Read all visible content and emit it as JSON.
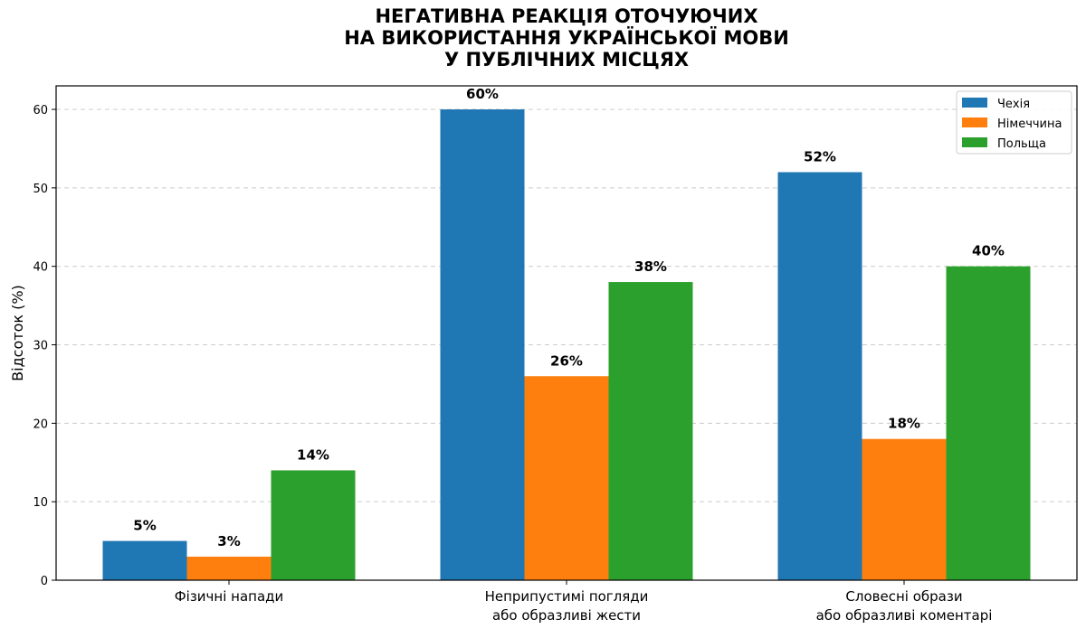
{
  "chart_data": {
    "type": "bar",
    "title": [
      "НЕГАТИВНА РЕАКЦІЯ ОТОЧУЮЧИХ",
      "НА ВИКОРИСТАННЯ УКРАЇНСЬКОЇ МОВИ",
      "У ПУБЛІЧНИХ МІСЦЯХ"
    ],
    "ylabel": "Відсоток (%)",
    "xlabel": "",
    "ylim": [
      0,
      63
    ],
    "yticks": [
      0,
      10,
      20,
      30,
      40,
      50,
      60
    ],
    "grid": "y-dashed",
    "legend_position": "top-right",
    "categories": [
      [
        "Фізичні напади"
      ],
      [
        "Неприпустимі погляди",
        "або образливі жести"
      ],
      [
        "Словесні образи",
        "або образливі коментарі"
      ]
    ],
    "series": [
      {
        "name": "Чехія",
        "color": "#1f77b4",
        "values": [
          5,
          60,
          52
        ],
        "labels": [
          "5%",
          "60%",
          "52%"
        ]
      },
      {
        "name": "Німеччина",
        "color": "#ff7f0e",
        "values": [
          3,
          26,
          18
        ],
        "labels": [
          "3%",
          "26%",
          "18%"
        ]
      },
      {
        "name": "Польща",
        "color": "#2ca02c",
        "values": [
          14,
          38,
          40
        ],
        "labels": [
          "14%",
          "38%",
          "40%"
        ]
      }
    ]
  }
}
